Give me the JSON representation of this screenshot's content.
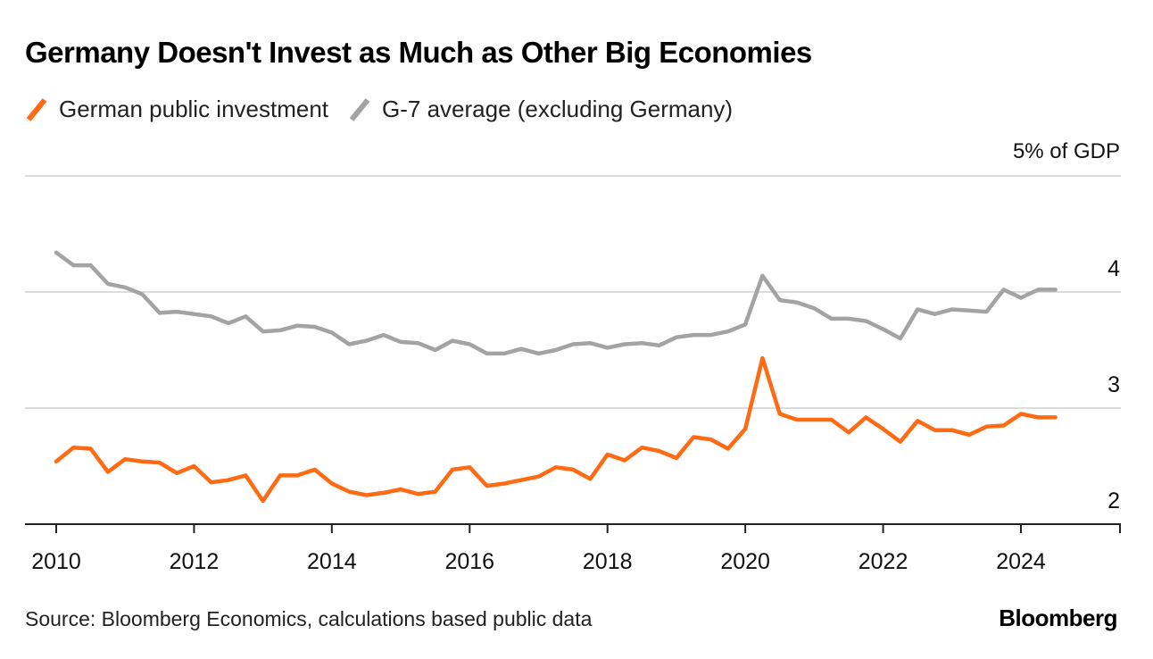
{
  "title": "Germany Doesn't Invest as Much as Other Big Economies",
  "legend": [
    {
      "label": "German public investment",
      "color": "#ff6a13"
    },
    {
      "label": "G-7 average (excluding Germany)",
      "color": "#a3a3a3"
    }
  ],
  "source": "Source: Bloomberg Economics, calculations based public data",
  "brand": "Bloomberg",
  "chart_data": {
    "type": "line",
    "title": "Germany Doesn't Invest as Much as Other Big Economies",
    "ylabel": "",
    "y_unit_label": "% of GDP",
    "ylim": [
      1.95,
      5.0
    ],
    "yticks": [
      2,
      3,
      4,
      5
    ],
    "ytick_labels": [
      "2",
      "3",
      "4",
      "5"
    ],
    "xlim": [
      2009.6,
      2025.9
    ],
    "xticks": [
      2010,
      2012,
      2014,
      2016,
      2018,
      2020,
      2022,
      2024
    ],
    "xtick_labels": [
      "2010",
      "2012",
      "2014",
      "2016",
      "2018",
      "2020",
      "2022",
      "2024"
    ],
    "grid": true,
    "legend_position": "top-left",
    "x": [
      2010.0,
      2010.25,
      2010.5,
      2010.75,
      2011.0,
      2011.25,
      2011.5,
      2011.75,
      2012.0,
      2012.25,
      2012.5,
      2012.75,
      2013.0,
      2013.25,
      2013.5,
      2013.75,
      2014.0,
      2014.25,
      2014.5,
      2014.75,
      2015.0,
      2015.25,
      2015.5,
      2015.75,
      2016.0,
      2016.25,
      2016.5,
      2016.75,
      2017.0,
      2017.25,
      2017.5,
      2017.75,
      2018.0,
      2018.25,
      2018.5,
      2018.75,
      2019.0,
      2019.25,
      2019.5,
      2019.75,
      2020.0,
      2020.25,
      2020.5,
      2020.75,
      2021.0,
      2021.25,
      2021.5,
      2021.75,
      2022.0,
      2022.25,
      2022.5,
      2022.75,
      2023.0,
      2023.25,
      2023.5,
      2023.75,
      2024.0,
      2024.25,
      2024.5
    ],
    "series": [
      {
        "name": "German public investment",
        "color": "#ff6a13",
        "values": [
          2.54,
          2.66,
          2.65,
          2.45,
          2.56,
          2.54,
          2.53,
          2.44,
          2.5,
          2.36,
          2.38,
          2.42,
          2.2,
          2.42,
          2.42,
          2.47,
          2.35,
          2.28,
          2.25,
          2.27,
          2.3,
          2.26,
          2.28,
          2.47,
          2.49,
          2.33,
          2.35,
          2.38,
          2.41,
          2.49,
          2.47,
          2.39,
          2.6,
          2.55,
          2.66,
          2.63,
          2.57,
          2.75,
          2.73,
          2.65,
          2.82,
          3.43,
          2.95,
          2.9,
          2.9,
          2.9,
          2.79,
          2.92,
          2.82,
          2.71,
          2.89,
          2.81,
          2.81,
          2.77,
          2.84,
          2.85,
          2.95,
          2.92,
          2.92
        ]
      },
      {
        "name": "G-7 average (excluding Germany)",
        "color": "#a3a3a3",
        "values": [
          4.34,
          4.23,
          4.23,
          4.07,
          4.04,
          3.98,
          3.82,
          3.83,
          3.81,
          3.79,
          3.73,
          3.79,
          3.66,
          3.67,
          3.71,
          3.7,
          3.65,
          3.55,
          3.58,
          3.63,
          3.57,
          3.56,
          3.5,
          3.58,
          3.55,
          3.47,
          3.47,
          3.51,
          3.47,
          3.5,
          3.55,
          3.56,
          3.52,
          3.55,
          3.56,
          3.54,
          3.61,
          3.63,
          3.63,
          3.66,
          3.72,
          4.14,
          3.93,
          3.91,
          3.86,
          3.77,
          3.77,
          3.75,
          3.68,
          3.6,
          3.85,
          3.81,
          3.85,
          3.84,
          3.83,
          4.02,
          3.95,
          4.02,
          4.02
        ]
      }
    ]
  }
}
